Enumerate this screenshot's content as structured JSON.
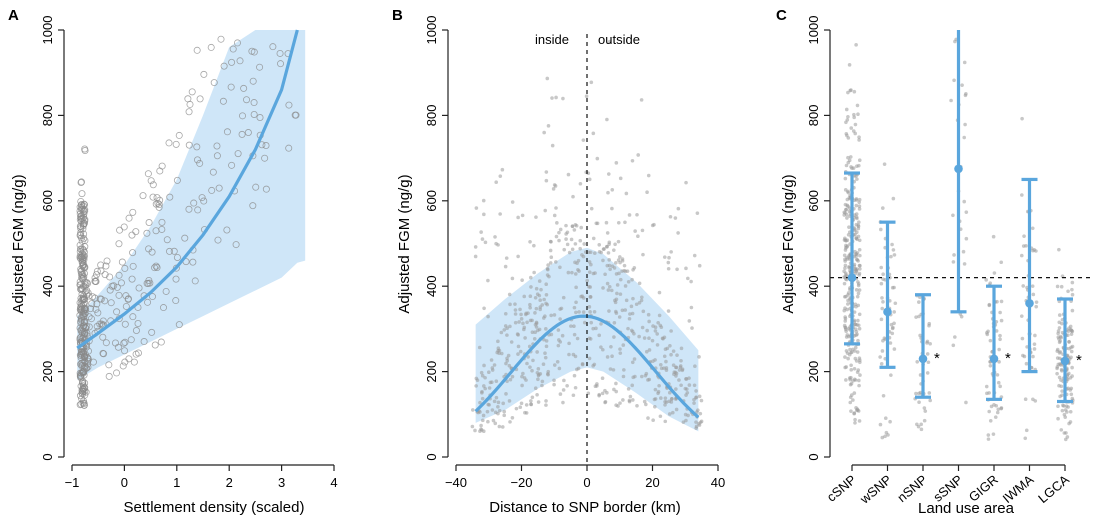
{
  "colors": {
    "accent": "#5aa6dd",
    "band": "#cfe6f8",
    "points_open": "#8a8a8a",
    "points_filled": "#9a9a9a",
    "axis": "#222222"
  },
  "chart_data": [
    {
      "type": "scatter",
      "panel": "A",
      "xlabel": "Settlement density (scaled)",
      "ylabel": "Adjusted FGM (ng/g)",
      "xlim": [
        -1,
        4
      ],
      "ylim": [
        0,
        1000
      ],
      "xticks": [
        "−1",
        "0",
        "1",
        "2",
        "3",
        "4"
      ],
      "yticks": [
        "0",
        "200",
        "400",
        "600",
        "800",
        "1000"
      ],
      "fit": {
        "x": [
          -0.9,
          -0.5,
          0,
          0.5,
          1,
          1.5,
          2,
          2.5,
          3,
          3.3
        ],
        "y": [
          255,
          290,
          335,
          385,
          445,
          520,
          610,
          720,
          860,
          1000
        ],
        "upper": [
          330,
          380,
          450,
          540,
          650,
          800,
          960,
          1000,
          1000,
          1000
        ],
        "lower": [
          180,
          210,
          240,
          270,
          300,
          330,
          360,
          390,
          420,
          455
        ]
      },
      "points_description": "open circles"
    },
    {
      "type": "scatter",
      "panel": "B",
      "xlabel": "Distance to SNP border (km)",
      "ylabel": "Adjusted FGM (ng/g)",
      "xlim": [
        -40,
        40
      ],
      "ylim": [
        0,
        1000
      ],
      "xticks": [
        "−40",
        "−20",
        "0",
        "20",
        "40"
      ],
      "yticks": [
        "0",
        "200",
        "400",
        "600",
        "800",
        "1000"
      ],
      "vline_x": 0,
      "annotations": [
        "inside",
        "outside"
      ],
      "fit": {
        "x": [
          -34,
          -25,
          -15,
          -5,
          0,
          5,
          15,
          25,
          34
        ],
        "y": [
          160,
          215,
          280,
          325,
          330,
          320,
          265,
          195,
          130
        ],
        "upper": [
          310,
          370,
          430,
          480,
          490,
          475,
          410,
          330,
          250
        ],
        "lower": [
          80,
          110,
          160,
          200,
          210,
          200,
          150,
          95,
          60
        ]
      }
    },
    {
      "type": "scatter",
      "panel": "C",
      "xlabel": "Land use area",
      "ylabel": "Adjusted FGM (ng/g)",
      "ylim": [
        0,
        1000
      ],
      "yticks": [
        "0",
        "200",
        "400",
        "600",
        "800",
        "1000"
      ],
      "hline_y": 420,
      "categories": [
        "cSNP",
        "wSNP",
        "nSNP",
        "sSNP",
        "GIGR",
        "IWMA",
        "LGCA"
      ],
      "means": [
        420,
        340,
        230,
        675,
        230,
        360,
        225
      ],
      "upper": [
        665,
        550,
        380,
        1000,
        400,
        650,
        370
      ],
      "lower": [
        265,
        210,
        140,
        340,
        135,
        200,
        130
      ],
      "significant": [
        "",
        "",
        "*",
        "",
        "*",
        "",
        "*"
      ]
    }
  ]
}
